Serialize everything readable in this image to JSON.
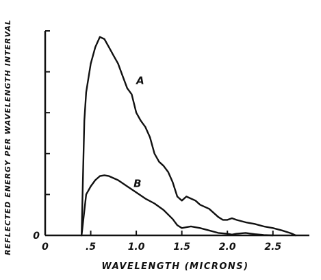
{
  "chart_data": {
    "type": "line",
    "title": "",
    "xlabel": "WAVELENGTH (MICRONS)",
    "ylabel": "REFLECTED ENERGY PER WAVELENGTH INTERVAL",
    "xlim": [
      0,
      2.9
    ],
    "ylim": [
      0,
      5
    ],
    "grid": false,
    "x_ticks": [
      {
        "value": 0,
        "label": "0"
      },
      {
        "value": 0.5,
        "label": ".5"
      },
      {
        "value": 1.0,
        "label": "1.0"
      },
      {
        "value": 1.5,
        "label": "1.5"
      },
      {
        "value": 2.0,
        "label": "2.0"
      },
      {
        "value": 2.5,
        "label": "2.5"
      }
    ],
    "y_ticks": [
      {
        "value": 0,
        "label": "0"
      },
      {
        "value": 1,
        "label": ""
      },
      {
        "value": 2,
        "label": ""
      },
      {
        "value": 3,
        "label": ""
      },
      {
        "value": 4,
        "label": ""
      },
      {
        "value": 5,
        "label": ""
      }
    ],
    "series": [
      {
        "name": "A",
        "x": [
          0.4,
          0.43,
          0.45,
          0.5,
          0.55,
          0.6,
          0.65,
          0.7,
          0.75,
          0.8,
          0.85,
          0.9,
          0.95,
          1.0,
          1.05,
          1.1,
          1.15,
          1.2,
          1.25,
          1.3,
          1.35,
          1.4,
          1.45,
          1.5,
          1.55,
          1.6,
          1.65,
          1.7,
          1.75,
          1.8,
          1.85,
          1.9,
          1.95,
          2.0,
          2.05,
          2.1,
          2.2,
          2.3,
          2.4,
          2.5,
          2.6,
          2.7,
          2.75
        ],
        "y": [
          0.0,
          2.8,
          3.5,
          4.2,
          4.6,
          4.85,
          4.8,
          4.6,
          4.4,
          4.2,
          3.9,
          3.6,
          3.45,
          3.0,
          2.8,
          2.65,
          2.4,
          2.0,
          1.8,
          1.7,
          1.55,
          1.3,
          0.95,
          0.85,
          0.95,
          0.9,
          0.85,
          0.75,
          0.7,
          0.65,
          0.55,
          0.45,
          0.38,
          0.38,
          0.42,
          0.38,
          0.32,
          0.28,
          0.22,
          0.18,
          0.12,
          0.05,
          0.0
        ]
      },
      {
        "name": "B",
        "x": [
          0.4,
          0.45,
          0.5,
          0.55,
          0.6,
          0.65,
          0.7,
          0.8,
          0.9,
          1.0,
          1.1,
          1.2,
          1.3,
          1.4,
          1.45,
          1.5,
          1.55,
          1.6,
          1.7,
          1.8,
          1.9,
          2.0,
          2.05,
          2.1,
          2.2,
          2.3,
          2.4,
          2.5
        ],
        "y": [
          0.0,
          1.0,
          1.2,
          1.35,
          1.45,
          1.47,
          1.45,
          1.35,
          1.2,
          1.05,
          0.9,
          0.78,
          0.62,
          0.4,
          0.25,
          0.18,
          0.2,
          0.22,
          0.18,
          0.12,
          0.06,
          0.04,
          0.02,
          0.04,
          0.06,
          0.03,
          0.01,
          0.0
        ]
      }
    ]
  }
}
